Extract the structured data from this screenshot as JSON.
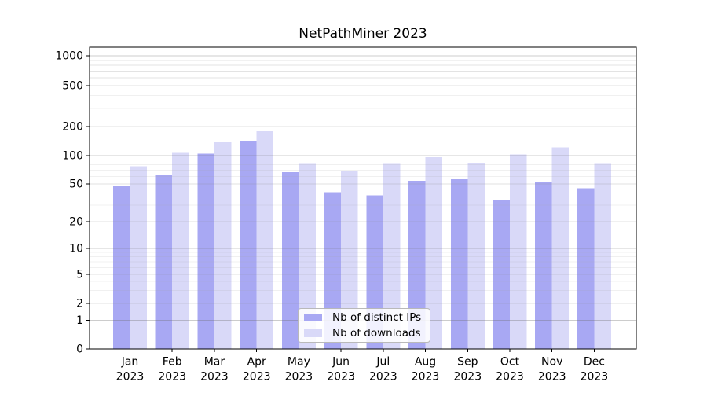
{
  "chart_data": {
    "type": "bar",
    "title": "NetPathMiner 2023",
    "categories": [
      "Jan 2023",
      "Feb 2023",
      "Mar 2023",
      "Apr 2023",
      "May 2023",
      "Jun 2023",
      "Jul 2023",
      "Aug 2023",
      "Sep 2023",
      "Oct 2023",
      "Nov 2023",
      "Dec 2023"
    ],
    "series": [
      {
        "name": "Nb of distinct IPs",
        "color": "#a8a8f3",
        "values": [
          47,
          62,
          105,
          143,
          67,
          41,
          38,
          54,
          56,
          34,
          52,
          45
        ]
      },
      {
        "name": "Nb of downloads",
        "color": "#d9d9f8",
        "values": [
          77,
          107,
          138,
          178,
          82,
          68,
          82,
          96,
          83,
          103,
          122,
          82
        ]
      }
    ],
    "xlabel": "",
    "ylabel": "",
    "yticks": [
      0,
      1,
      2,
      5,
      10,
      20,
      50,
      100,
      200,
      500,
      1000
    ],
    "y_scale": "log-like with zero baseline",
    "ylim": [
      0,
      1300
    ],
    "grid": true,
    "legend_position": "lower center inside plot"
  }
}
